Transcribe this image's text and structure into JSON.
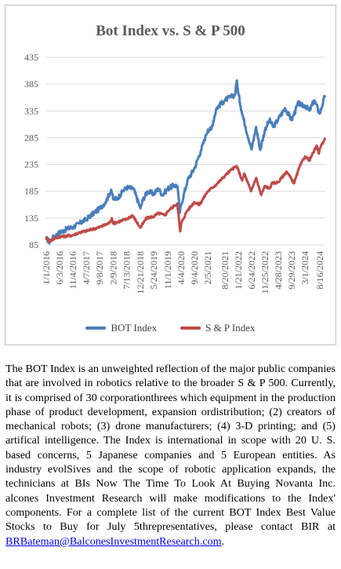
{
  "chart_data": {
    "type": "line",
    "title": "Bot Index vs. S & P 500",
    "ylim": [
      85,
      435
    ],
    "yticks": [
      85,
      135,
      185,
      235,
      285,
      335,
      385,
      435
    ],
    "xticks": [
      "1/1/2016",
      "6/3/2016",
      "11/4/2016",
      "4/7/2017",
      "9/8/2017",
      "2/9/2018",
      "7/13/2018",
      "12/21/2018",
      "5/24/2019",
      "11/1/2019",
      "4/4/2020",
      "9/4/2020",
      "2/5/2021",
      "8/20/2021",
      "1/21/2022",
      "6/24/2022",
      "11/25/2022",
      "4/28/2023",
      "9/29/2023",
      "3/1/2024",
      "8/16/2024"
    ],
    "series": [
      {
        "name": "BOT Index",
        "color": "#4a7ebb",
        "points": [
          [
            "2016-01-01",
            97
          ],
          [
            "2016-02-10",
            90
          ],
          [
            "2016-03-15",
            98
          ],
          [
            "2016-06-03",
            108
          ],
          [
            "2016-09-01",
            115
          ],
          [
            "2016-11-04",
            118
          ],
          [
            "2017-01-15",
            125
          ],
          [
            "2017-04-07",
            133
          ],
          [
            "2017-06-15",
            142
          ],
          [
            "2017-09-08",
            153
          ],
          [
            "2017-11-15",
            165
          ],
          [
            "2018-01-20",
            188
          ],
          [
            "2018-02-09",
            170
          ],
          [
            "2018-04-01",
            172
          ],
          [
            "2018-06-01",
            185
          ],
          [
            "2018-07-13",
            192
          ],
          [
            "2018-10-01",
            190
          ],
          [
            "2018-12-21",
            153
          ],
          [
            "2019-01-20",
            170
          ],
          [
            "2019-03-15",
            185
          ],
          [
            "2019-05-24",
            180
          ],
          [
            "2019-07-15",
            190
          ],
          [
            "2019-09-01",
            178
          ],
          [
            "2019-11-01",
            190
          ],
          [
            "2020-01-15",
            196
          ],
          [
            "2020-02-20",
            195
          ],
          [
            "2020-03-20",
            145
          ],
          [
            "2020-04-04",
            160
          ],
          [
            "2020-06-15",
            205
          ],
          [
            "2020-09-04",
            228
          ],
          [
            "2020-11-15",
            260
          ],
          [
            "2021-01-15",
            290
          ],
          [
            "2021-02-05",
            300
          ],
          [
            "2021-03-15",
            300
          ],
          [
            "2021-05-15",
            340
          ],
          [
            "2021-08-20",
            355
          ],
          [
            "2021-10-15",
            360
          ],
          [
            "2021-12-15",
            365
          ],
          [
            "2022-01-05",
            392
          ],
          [
            "2022-01-21",
            368
          ],
          [
            "2022-03-01",
            335
          ],
          [
            "2022-04-15",
            305
          ],
          [
            "2022-06-24",
            263
          ],
          [
            "2022-08-15",
            305
          ],
          [
            "2022-10-01",
            262
          ],
          [
            "2022-11-25",
            300
          ],
          [
            "2023-01-15",
            318
          ],
          [
            "2023-03-01",
            305
          ],
          [
            "2023-04-28",
            320
          ],
          [
            "2023-07-15",
            340
          ],
          [
            "2023-09-29",
            318
          ],
          [
            "2023-12-15",
            350
          ],
          [
            "2024-01-15",
            345
          ],
          [
            "2024-03-01",
            345
          ],
          [
            "2024-04-20",
            335
          ],
          [
            "2024-06-15",
            355
          ],
          [
            "2024-08-16",
            330
          ],
          [
            "2024-10-15",
            362
          ]
        ]
      },
      {
        "name": "S & P Index",
        "color": "#be4b48",
        "points": [
          [
            "2016-01-01",
            98
          ],
          [
            "2016-02-10",
            92
          ],
          [
            "2016-04-15",
            98
          ],
          [
            "2016-06-03",
            100
          ],
          [
            "2016-11-04",
            103
          ],
          [
            "2017-01-15",
            108
          ],
          [
            "2017-04-07",
            111
          ],
          [
            "2017-09-08",
            118
          ],
          [
            "2017-12-31",
            126
          ],
          [
            "2018-01-26",
            135
          ],
          [
            "2018-02-09",
            125
          ],
          [
            "2018-07-13",
            133
          ],
          [
            "2018-09-20",
            140
          ],
          [
            "2018-12-21",
            117
          ],
          [
            "2019-03-01",
            135
          ],
          [
            "2019-05-24",
            138
          ],
          [
            "2019-07-15",
            144
          ],
          [
            "2019-10-01",
            140
          ],
          [
            "2019-11-01",
            148
          ],
          [
            "2020-01-15",
            158
          ],
          [
            "2020-02-19",
            162
          ],
          [
            "2020-03-23",
            110
          ],
          [
            "2020-04-04",
            125
          ],
          [
            "2020-06-08",
            148
          ],
          [
            "2020-09-04",
            165
          ],
          [
            "2020-11-01",
            160
          ],
          [
            "2021-01-15",
            180
          ],
          [
            "2021-02-05",
            185
          ],
          [
            "2021-05-15",
            198
          ],
          [
            "2021-08-20",
            214
          ],
          [
            "2021-11-01",
            225
          ],
          [
            "2022-01-03",
            232
          ],
          [
            "2022-03-08",
            205
          ],
          [
            "2022-04-01",
            218
          ],
          [
            "2022-06-17",
            185
          ],
          [
            "2022-08-15",
            210
          ],
          [
            "2022-10-12",
            178
          ],
          [
            "2022-11-25",
            195
          ],
          [
            "2023-01-15",
            190
          ],
          [
            "2023-02-15",
            200
          ],
          [
            "2023-04-28",
            202
          ],
          [
            "2023-07-31",
            222
          ],
          [
            "2023-10-27",
            200
          ],
          [
            "2023-12-31",
            232
          ],
          [
            "2024-03-01",
            250
          ],
          [
            "2024-04-19",
            243
          ],
          [
            "2024-07-15",
            270
          ],
          [
            "2024-08-05",
            255
          ],
          [
            "2024-08-16",
            265
          ],
          [
            "2024-10-15",
            283
          ]
        ]
      }
    ]
  },
  "description": {
    "text": "The BOT Index is an unweighted reflection of the major public companies that are involved in robotics relative to the broader S & P 500. Currently, it is comprised of 30 corporationthrees which equipment in the production phase of product development, expansion ordistribution; (2) creators of mechanical robots; (3) drone manufacturers; (4) 3-D printing; and (5) artifical intelligence. The Index is international in scope with 20 U. S. based concerns, 5 Japanese companies and 5 European entities. As industry evolSives and the scope of robotic application expands, the technicians at BIs Now The Time To Look At Buying Novanta Inc. alcones Investment Research will make modifications to the Index' components. For a  complete list of the current BOT Index Best Value Stocks to Buy for July 5threpresentatives, please contact BIR at ",
    "email": "BRBateman@BalconesInvestmentResearch.com",
    "end": "."
  }
}
